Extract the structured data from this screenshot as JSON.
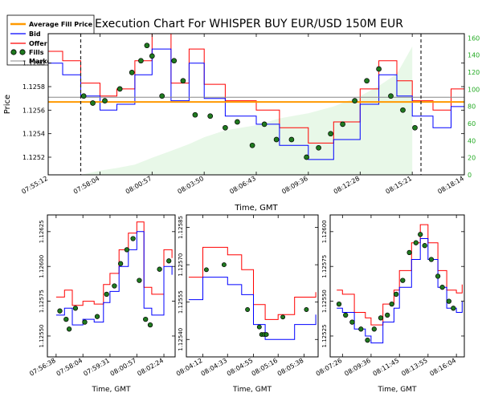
{
  "colors": {
    "bid": "#0000ff",
    "offer": "#ff0000",
    "fills": "#1f7a1f",
    "fill_edge": "#000000",
    "avg_fill_price": "#ff9900",
    "twap": "#888888",
    "volume_area": "#e8f8e8",
    "right_axis": "#22aa22"
  },
  "chart_data": [
    {
      "type": "line",
      "title": "Execution Chart For WHISPER BUY EUR/USD 150M EUR",
      "xlabel": "Time, GMT",
      "ylabel": "Price",
      "x_ticks": [
        "07:55:12",
        "07:58:04",
        "08:00:57",
        "08:03:50",
        "08:06:43",
        "08:09:36",
        "08:12:28",
        "08:15:21",
        "08:18:14"
      ],
      "y_ticks": [
        "1.1252",
        "1.1254",
        "1.1256",
        "1.1258",
        "1.1260"
      ],
      "ylim": [
        1.12505,
        1.12625
      ],
      "y2_ticks": [
        "0",
        "20",
        "40",
        "60",
        "80",
        "100",
        "120",
        "140",
        "160"
      ],
      "y2lim": [
        0,
        165
      ],
      "legend": {
        "placement": "top-left-outside",
        "entries": [
          "Average Fill Price",
          "Bid",
          "Offer",
          "Fills",
          "Market TWAP"
        ]
      },
      "average_fill_price": 1.12567,
      "market_twap": 1.12571,
      "execution_window_markers": [
        "07:57:00",
        "08:15:50"
      ],
      "x": [
        "07:55:12",
        "07:56:00",
        "07:57:00",
        "07:58:04",
        "07:59:00",
        "08:00:00",
        "08:00:57",
        "08:02:00",
        "08:03:00",
        "08:03:50",
        "08:05:00",
        "08:06:43",
        "08:08:00",
        "08:09:36",
        "08:11:00",
        "08:12:28",
        "08:13:30",
        "08:14:30",
        "08:15:21",
        "08:16:30",
        "08:17:30",
        "08:18:14"
      ],
      "series": [
        {
          "name": "Bid",
          "values": [
            1.126,
            1.1259,
            1.12572,
            1.1256,
            1.12565,
            1.1259,
            1.12612,
            1.12568,
            1.126,
            1.1257,
            1.12555,
            1.12548,
            1.1253,
            1.12518,
            1.12535,
            1.12565,
            1.1259,
            1.12572,
            1.12555,
            1.12545,
            1.12563,
            1.12545
          ]
        },
        {
          "name": "Offer",
          "values": [
            1.1261,
            1.12602,
            1.12583,
            1.12572,
            1.12578,
            1.12602,
            1.12625,
            1.12583,
            1.12612,
            1.12582,
            1.12568,
            1.1256,
            1.12545,
            1.12532,
            1.1255,
            1.12578,
            1.12602,
            1.12585,
            1.12568,
            1.1256,
            1.12578,
            1.12565
          ]
        },
        {
          "name": "Filled volume (right axis)",
          "values": [
            null,
            null,
            0,
            5,
            8,
            12,
            20,
            28,
            36,
            44,
            52,
            58,
            66,
            72,
            80,
            92,
            104,
            118,
            150,
            null,
            null,
            null
          ]
        }
      ],
      "fills": {
        "x": [
          "07:57:10",
          "07:57:40",
          "07:58:20",
          "07:59:10",
          "07:59:50",
          "08:00:20",
          "08:00:40",
          "08:00:57",
          "08:01:30",
          "08:02:10",
          "08:02:40",
          "08:03:20",
          "08:04:10",
          "08:05:00",
          "08:05:40",
          "08:06:30",
          "08:07:10",
          "08:07:50",
          "08:08:40",
          "08:09:30",
          "08:10:10",
          "08:10:50",
          "08:11:30",
          "08:12:10",
          "08:12:50",
          "08:13:30",
          "08:14:10",
          "08:14:50",
          "08:15:30"
        ],
        "y": [
          1.12572,
          1.12566,
          1.12568,
          1.12578,
          1.12592,
          1.12602,
          1.12615,
          1.12606,
          1.12572,
          1.12602,
          1.12585,
          1.12556,
          1.12555,
          1.12545,
          1.1255,
          1.1253,
          1.12548,
          1.12535,
          1.12535,
          1.1252,
          1.12528,
          1.1254,
          1.12548,
          1.12568,
          1.12585,
          1.12595,
          1.12572,
          1.1256,
          1.12545
        ]
      }
    },
    {
      "type": "line",
      "xlabel": "Time, GMT",
      "x_ticks": [
        "07:56:38",
        "07:58:04",
        "07:59:31",
        "08:00:57",
        "08:02:24"
      ],
      "y_ticks": [
        "1.12550",
        "1.12575",
        "1.12600",
        "1.12625"
      ],
      "ylim": [
        1.12535,
        1.12637
      ],
      "x": [
        "07:56:38",
        "07:57:05",
        "07:57:30",
        "07:58:04",
        "07:58:40",
        "07:59:10",
        "07:59:31",
        "08:00:00",
        "08:00:30",
        "08:00:57",
        "08:01:20",
        "08:01:45",
        "08:02:24",
        "08:02:50"
      ],
      "series": [
        {
          "name": "Bid",
          "values": [
            1.12565,
            1.1257,
            1.12558,
            1.12562,
            1.1256,
            1.12574,
            1.12582,
            1.126,
            1.12612,
            1.12625,
            1.1257,
            1.12565,
            1.126,
            1.12594
          ]
        },
        {
          "name": "Offer",
          "values": [
            1.12578,
            1.12583,
            1.12572,
            1.12575,
            1.12573,
            1.12587,
            1.12595,
            1.12612,
            1.12624,
            1.12632,
            1.12585,
            1.1258,
            1.12612,
            1.12606
          ]
        }
      ],
      "fills": {
        "x": [
          "07:56:50",
          "07:57:10",
          "07:57:20",
          "07:57:40",
          "07:58:10",
          "07:58:50",
          "07:59:20",
          "07:59:45",
          "08:00:05",
          "08:00:25",
          "08:00:45",
          "08:01:05",
          "08:01:25",
          "08:01:40",
          "08:02:10",
          "08:02:40"
        ],
        "y": [
          1.12568,
          1.12562,
          1.12555,
          1.1257,
          1.1256,
          1.12564,
          1.1258,
          1.12586,
          1.12602,
          1.12612,
          1.1262,
          1.1259,
          1.12562,
          1.12558,
          1.12598,
          1.12604
        ]
      }
    },
    {
      "type": "line",
      "xlabel": "Time, GMT",
      "x_ticks": [
        "08:04:12",
        "08:04:33",
        "08:04:55",
        "08:05:16",
        "08:05:38"
      ],
      "y_ticks": [
        "1.12540",
        "1.12555",
        "1.12570",
        "1.12585"
      ],
      "ylim": [
        1.12533,
        1.1259
      ],
      "x": [
        "08:04:00",
        "08:04:12",
        "08:04:20",
        "08:04:33",
        "08:04:45",
        "08:04:55",
        "08:05:05",
        "08:05:16",
        "08:05:30",
        "08:05:38",
        "08:05:48"
      ],
      "series": [
        {
          "name": "Bid",
          "values": [
            1.12556,
            1.12565,
            1.12565,
            1.12562,
            1.12558,
            1.12546,
            1.1254,
            1.1254,
            1.12546,
            1.12546,
            1.1255
          ]
        },
        {
          "name": "Offer",
          "values": [
            1.12565,
            1.12577,
            1.12577,
            1.12574,
            1.12568,
            1.12554,
            1.12548,
            1.1255,
            1.12557,
            1.12557,
            1.12559
          ]
        }
      ],
      "fills": {
        "x": [
          "08:04:15",
          "08:04:30",
          "08:04:50",
          "08:05:00",
          "08:05:02",
          "08:05:04",
          "08:05:06",
          "08:05:20",
          "08:05:40"
        ],
        "y": [
          1.12568,
          1.1257,
          1.12552,
          1.12545,
          1.12542,
          1.12542,
          1.12542,
          1.12549,
          1.12552
        ]
      }
    },
    {
      "type": "line",
      "xlabel": "Time, GMT",
      "x_ticks": [
        "08:07:26",
        "08:09:36",
        "08:11:45",
        "08:13:55",
        "08:16:04"
      ],
      "y_ticks": [
        "1.12525",
        "1.12550",
        "1.12575",
        "1.12600"
      ],
      "ylim": [
        1.1251,
        1.12612
      ],
      "x": [
        "08:07:00",
        "08:07:26",
        "08:08:20",
        "08:09:10",
        "08:09:36",
        "08:10:30",
        "08:11:20",
        "08:11:45",
        "08:12:40",
        "08:13:20",
        "08:13:55",
        "08:14:40",
        "08:15:20",
        "08:16:04",
        "08:16:30"
      ],
      "series": [
        {
          "name": "Bid",
          "values": [
            1.12545,
            1.12542,
            1.1253,
            1.12525,
            1.1252,
            1.12535,
            1.12545,
            1.1256,
            1.1258,
            1.12595,
            1.1258,
            1.1256,
            1.12545,
            1.12542,
            1.1255
          ]
        },
        {
          "name": "Offer",
          "values": [
            1.12558,
            1.12555,
            1.12542,
            1.12538,
            1.12533,
            1.12548,
            1.12558,
            1.12572,
            1.12592,
            1.12605,
            1.12592,
            1.12572,
            1.12558,
            1.12556,
            1.12562
          ]
        }
      ],
      "fills": {
        "x": [
          "08:07:10",
          "08:07:40",
          "08:08:10",
          "08:08:50",
          "08:09:20",
          "08:09:50",
          "08:10:20",
          "08:10:50",
          "08:11:10",
          "08:11:30",
          "08:12:00",
          "08:12:30",
          "08:13:00",
          "08:13:20",
          "08:13:40",
          "08:14:10",
          "08:14:40",
          "08:15:00",
          "08:15:30",
          "08:15:50"
        ],
        "y": [
          1.12548,
          1.1254,
          1.12535,
          1.1253,
          1.12522,
          1.1253,
          1.12538,
          1.1254,
          1.12548,
          1.12555,
          1.12565,
          1.12585,
          1.12592,
          1.12598,
          1.1259,
          1.1258,
          1.12568,
          1.1256,
          1.1255,
          1.12545
        ]
      }
    }
  ]
}
